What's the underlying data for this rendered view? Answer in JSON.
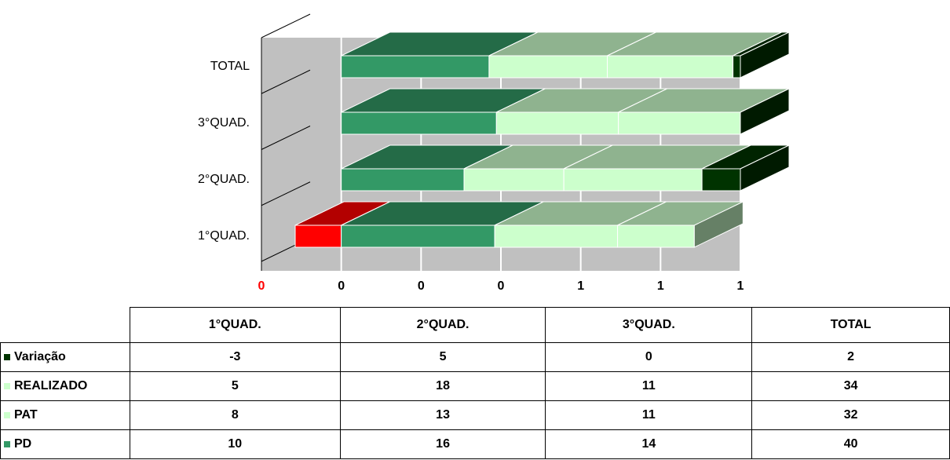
{
  "chart_data": {
    "type": "bar3d_stacked_percent",
    "categories": [
      "1°QUAD.",
      "2°QUAD.",
      "3°QUAD.",
      "TOTAL"
    ],
    "series": [
      {
        "name": "Variação",
        "color": "#003300",
        "values": [
          -3,
          5,
          0,
          2
        ]
      },
      {
        "name": "REALIZADO",
        "color": "#ccffcc",
        "values": [
          5,
          18,
          11,
          34
        ]
      },
      {
        "name": "PAT",
        "color": "#ccffcc",
        "values": [
          8,
          13,
          11,
          32
        ]
      },
      {
        "name": "PD",
        "color": "#339966",
        "values": [
          10,
          16,
          14,
          40
        ]
      }
    ],
    "negative_color": "#ff0000",
    "xlim": [
      -0.2,
      1
    ],
    "xticks": [
      {
        "value": -0.2,
        "label": "0"
      },
      {
        "value": 0,
        "label": "0"
      },
      {
        "value": 0.2,
        "label": "0"
      },
      {
        "value": 0.4,
        "label": "0"
      },
      {
        "value": 0.6,
        "label": "1"
      },
      {
        "value": 0.8,
        "label": "1"
      },
      {
        "value": 1,
        "label": "1"
      }
    ],
    "grid": true
  }
}
